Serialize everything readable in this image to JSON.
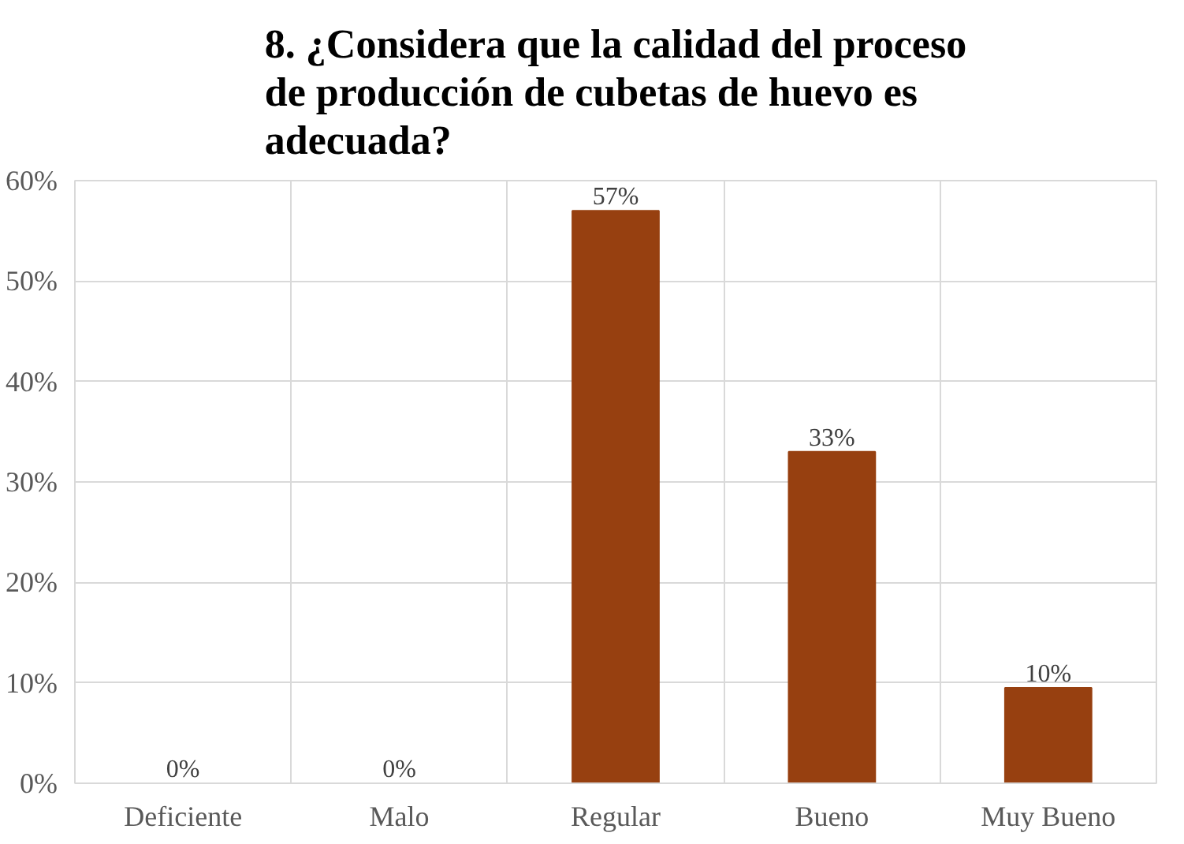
{
  "chart_data": {
    "type": "bar",
    "title": "8. ¿Considera que la calidad del proceso de producción de cubetas de huevo es adecuada?",
    "categories": [
      "Deficiente",
      "Malo",
      "Regular",
      "Bueno",
      "Muy Bueno"
    ],
    "values": [
      0,
      0,
      57,
      33,
      9.5
    ],
    "value_labels": [
      "0%",
      "0%",
      "57%",
      "33%",
      "10%"
    ],
    "color": "#974010",
    "ylim": [
      0,
      60
    ],
    "yticks": [
      {
        "value": 0,
        "label": "0%"
      },
      {
        "value": 10,
        "label": "10%"
      },
      {
        "value": 20,
        "label": "20%"
      },
      {
        "value": 30,
        "label": "30%"
      },
      {
        "value": 40,
        "label": "40%"
      },
      {
        "value": 50,
        "label": "50%"
      },
      {
        "value": 60,
        "label": "60%"
      }
    ],
    "grid": true
  }
}
